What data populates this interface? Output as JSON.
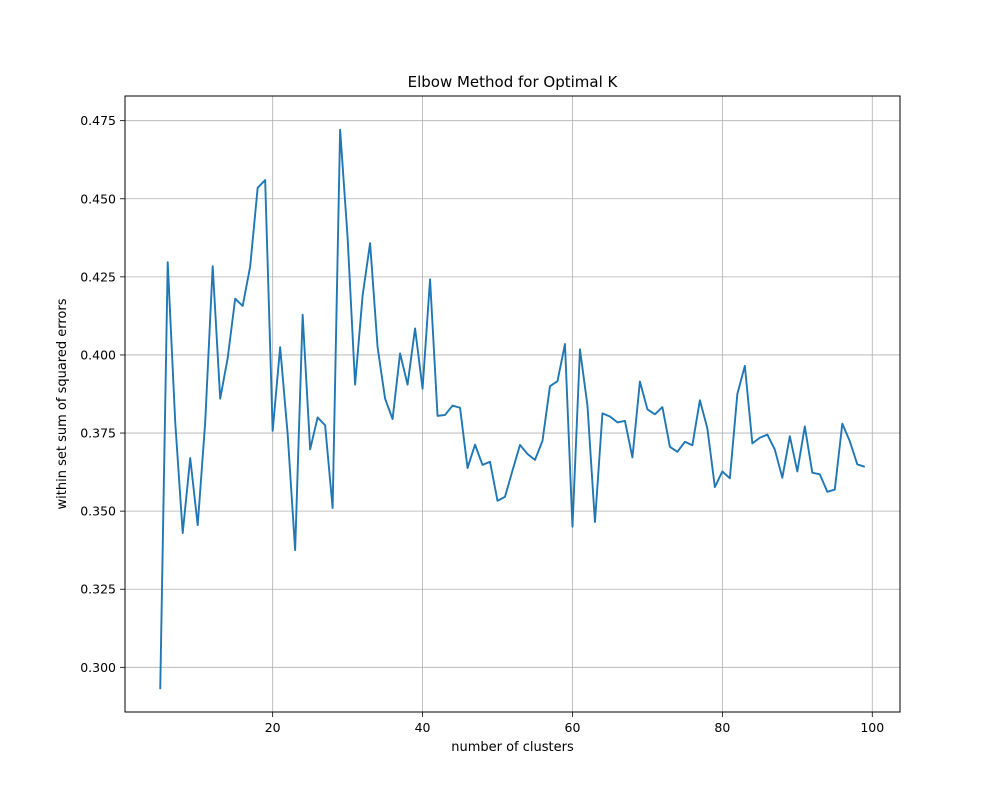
{
  "chart_data": {
    "type": "line",
    "title": "Elbow Method for Optimal K",
    "xlabel": "number of clusters",
    "ylabel": "within set sum of squared errors",
    "xlim": [
      0.3,
      103.7
    ],
    "ylim": [
      0.2857,
      0.4829
    ],
    "xticks": [
      20,
      40,
      60,
      80,
      100
    ],
    "xtick_labels": [
      "20",
      "40",
      "60",
      "80",
      "100"
    ],
    "yticks": [
      0.3,
      0.325,
      0.35,
      0.375,
      0.4,
      0.425,
      0.45,
      0.475
    ],
    "ytick_labels": [
      "0.300",
      "0.325",
      "0.350",
      "0.375",
      "0.400",
      "0.425",
      "0.450",
      "0.475"
    ],
    "grid": true,
    "line_color": "#1f77b4",
    "series": [
      {
        "x": [
          5,
          6,
          7,
          8,
          9,
          10,
          11,
          12,
          13,
          14,
          15,
          16,
          17,
          18,
          19,
          20,
          21,
          22,
          23,
          24,
          25,
          26,
          27,
          28,
          29,
          30,
          31,
          32,
          33,
          34,
          35,
          36,
          37,
          38,
          39,
          40,
          41,
          42,
          43,
          44,
          45,
          46,
          47,
          48,
          49,
          50,
          51,
          52,
          53,
          54,
          55,
          56,
          57,
          58,
          59,
          60,
          61,
          62,
          63,
          64,
          65,
          66,
          67,
          68,
          69,
          70,
          71,
          72,
          73,
          74,
          75,
          76,
          77,
          78,
          79,
          80,
          81,
          82,
          83,
          84,
          85,
          86,
          87,
          88,
          89,
          90,
          91,
          92,
          93,
          94,
          95,
          96,
          97,
          98,
          99
        ],
        "values": [
          0.293,
          0.4297,
          0.3785,
          0.343,
          0.367,
          0.3455,
          0.3785,
          0.4284,
          0.386,
          0.399,
          0.418,
          0.4157,
          0.4283,
          0.4535,
          0.456,
          0.3757,
          0.4025,
          0.3747,
          0.3375,
          0.4129,
          0.3698,
          0.38,
          0.3775,
          0.351,
          0.4721,
          0.4375,
          0.3905,
          0.419,
          0.4358,
          0.4025,
          0.386,
          0.3795,
          0.4005,
          0.3905,
          0.4085,
          0.3892,
          0.4242,
          0.3805,
          0.3808,
          0.3838,
          0.3831,
          0.3638,
          0.3713,
          0.3648,
          0.3658,
          0.3533,
          0.3546,
          0.363,
          0.3712,
          0.3683,
          0.3664,
          0.3725,
          0.39,
          0.3916,
          0.4035,
          0.345,
          0.4018,
          0.3838,
          0.3465,
          0.3813,
          0.3803,
          0.3784,
          0.3789,
          0.3672,
          0.3915,
          0.3826,
          0.381,
          0.3833,
          0.3706,
          0.369,
          0.3722,
          0.3711,
          0.3855,
          0.3765,
          0.3577,
          0.3627,
          0.3605,
          0.3875,
          0.3965,
          0.3717,
          0.3735,
          0.3745,
          0.3697,
          0.3607,
          0.374,
          0.3627,
          0.3771,
          0.3623,
          0.3618,
          0.3562,
          0.3569,
          0.378,
          0.3724,
          0.365,
          0.3642
        ]
      }
    ]
  }
}
